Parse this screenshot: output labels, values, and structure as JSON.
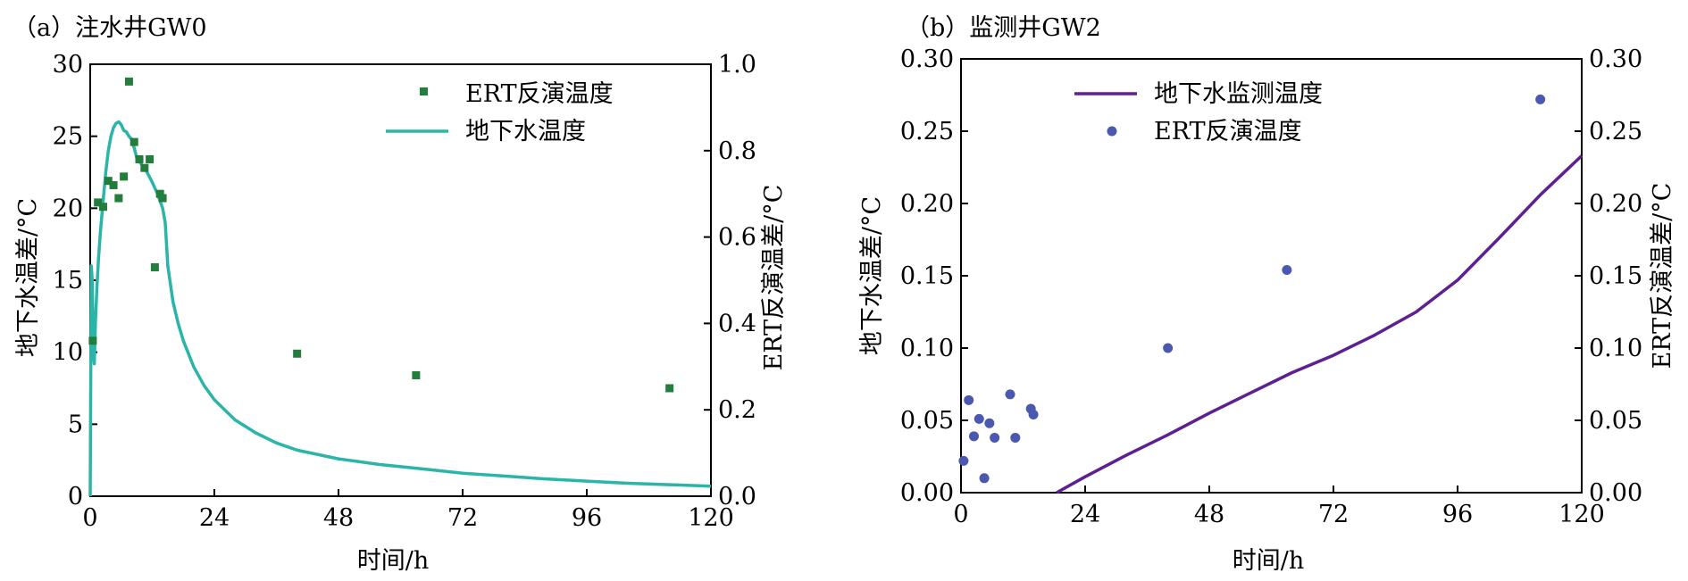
{
  "chart_data": [
    {
      "type": "line+scatter",
      "panel_label": "（a）注水井GW0",
      "xlabel": "时间/h",
      "ylabel_left": "地下水温差/°C",
      "ylabel_right": "ERT反演温差/°C",
      "xlim": [
        0,
        120
      ],
      "ylim_left": [
        0,
        30
      ],
      "ylim_right": [
        0,
        1.0
      ],
      "x_ticks": [
        "0",
        "24",
        "48",
        "72",
        "96",
        "120"
      ],
      "y_left_ticks": [
        "0",
        "5",
        "10",
        "15",
        "20",
        "25",
        "30"
      ],
      "y_right_ticks": [
        "0.0",
        "0.2",
        "0.4",
        "0.6",
        "0.8",
        "1.0"
      ],
      "legend": {
        "position": "top-right",
        "entries": [
          "ERT反演温度",
          "地下水温度"
        ]
      },
      "colors": {
        "line": "#2bb5a8",
        "marker": "#237d3c"
      },
      "series": [
        {
          "name": "地下水温度",
          "kind": "line",
          "axis": "left",
          "x": [
            0,
            0.2,
            0.4,
            0.6,
            0.8,
            1.0,
            1.3,
            1.6,
            2.0,
            2.5,
            3.0,
            3.5,
            4.0,
            4.5,
            5.0,
            5.5,
            6.0,
            6.5,
            7.0,
            7.5,
            8.0,
            8.5,
            9.0,
            10.0,
            11.0,
            12.0,
            13.0,
            14.0,
            14.5,
            15.0,
            16.0,
            17.0,
            18.0,
            20.0,
            22.0,
            24.0,
            28.0,
            32.0,
            36.0,
            40.0,
            48.0,
            56.0,
            64.0,
            72.0,
            80.0,
            88.0,
            96.0,
            104.0,
            112.0,
            120.0
          ],
          "y": [
            0,
            16.0,
            15.0,
            10.0,
            9.2,
            12.0,
            14.5,
            16.5,
            18.5,
            20.5,
            22.5,
            24.0,
            25.0,
            25.6,
            25.9,
            26.0,
            25.8,
            25.4,
            25.3,
            25.0,
            24.8,
            24.2,
            23.5,
            23.0,
            22.5,
            21.8,
            21.0,
            20.0,
            19.0,
            16.0,
            13.5,
            12.0,
            10.8,
            9.0,
            7.7,
            6.7,
            5.3,
            4.4,
            3.7,
            3.2,
            2.6,
            2.2,
            1.9,
            1.6,
            1.4,
            1.2,
            1.05,
            0.9,
            0.8,
            0.7
          ]
        },
        {
          "name": "ERT反演温度",
          "kind": "scatter",
          "axis": "right",
          "x": [
            0.5,
            1.5,
            2.5,
            3.5,
            4.5,
            5.5,
            6.5,
            7.5,
            8.5,
            9.5,
            10.5,
            11.5,
            12.5,
            13.5,
            14.0,
            40.0,
            63.0,
            112.0
          ],
          "y": [
            0.36,
            0.68,
            0.67,
            0.73,
            0.72,
            0.69,
            0.74,
            0.96,
            0.82,
            0.78,
            0.76,
            0.78,
            0.53,
            0.7,
            0.69,
            0.33,
            0.28,
            0.25
          ]
        }
      ]
    },
    {
      "type": "line+scatter",
      "panel_label": "（b）监测井GW2",
      "xlabel": "时间/h",
      "ylabel_left": "地下水温差/°C",
      "ylabel_right": "ERT反演温差/°C",
      "xlim": [
        0,
        120
      ],
      "ylim_left": [
        0,
        0.3
      ],
      "ylim_right": [
        0,
        0.3
      ],
      "x_ticks": [
        "0",
        "24",
        "48",
        "72",
        "96",
        "120"
      ],
      "y_left_ticks": [
        "0.00",
        "0.05",
        "0.10",
        "0.15",
        "0.20",
        "0.25",
        "0.30"
      ],
      "y_right_ticks": [
        "0.00",
        "0.05",
        "0.10",
        "0.15",
        "0.20",
        "0.25",
        "0.30"
      ],
      "legend": {
        "position": "top-left",
        "entries": [
          "地下水监测温度",
          "ERT反演温度"
        ]
      },
      "colors": {
        "line": "#5e1f8f",
        "marker": "#4b58b0"
      },
      "series": [
        {
          "name": "地下水监测温度",
          "kind": "line",
          "axis": "left",
          "x": [
            18.5,
            24,
            32,
            40,
            48,
            56,
            64,
            72,
            80,
            88,
            96,
            104,
            112,
            120
          ],
          "y": [
            0.0,
            0.011,
            0.026,
            0.04,
            0.055,
            0.069,
            0.083,
            0.095,
            0.109,
            0.125,
            0.147,
            0.176,
            0.206,
            0.233
          ]
        },
        {
          "name": "ERT反演温度",
          "kind": "scatter",
          "axis": "right",
          "x": [
            0.5,
            1.5,
            2.5,
            3.5,
            4.5,
            5.5,
            6.5,
            9.5,
            10.5,
            13.5,
            14.0,
            40.0,
            63.0,
            112.0
          ],
          "y": [
            0.022,
            0.064,
            0.039,
            0.051,
            0.01,
            0.048,
            0.038,
            0.068,
            0.038,
            0.058,
            0.054,
            0.1,
            0.154,
            0.272
          ]
        }
      ]
    }
  ]
}
